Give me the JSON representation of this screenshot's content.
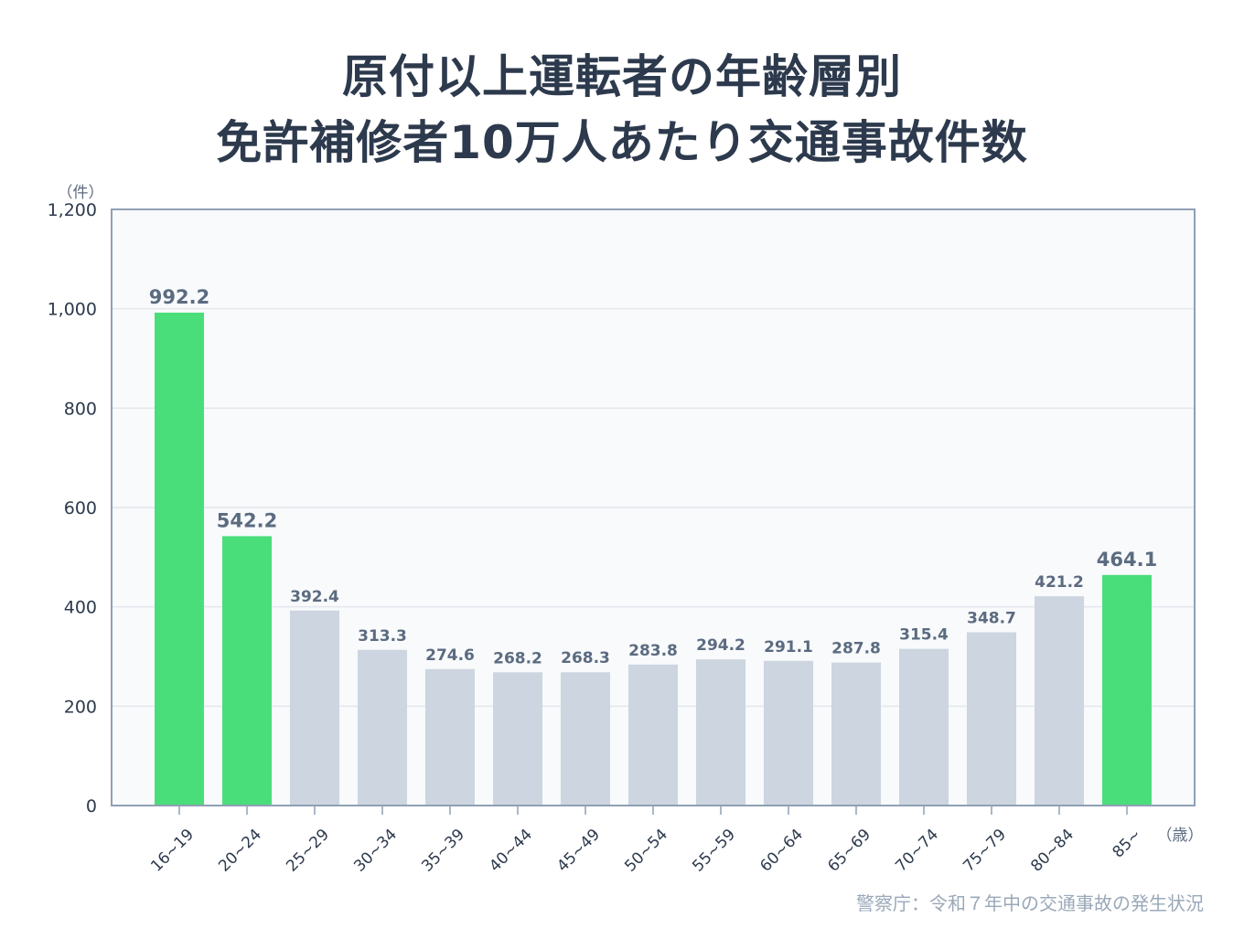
{
  "title": {
    "line1": "原付以上運転者の年齢層別",
    "line2": "免許補修者10万人あたり交通事故件数"
  },
  "source": "警察庁：令和７年中の交通事故の発生状況",
  "colors": {
    "highlight": "#4ade7b",
    "normal": "#ccd5e0",
    "plot_bg": "#f8fafb",
    "axis": "#8fa0b4",
    "grid": "#e3e8ee",
    "text_dark": "#2d3a4d",
    "label": "#5b6b80"
  },
  "chart_data": {
    "type": "bar",
    "ylabel": "（件）",
    "xlabel": "（歳）",
    "ylim": [
      0,
      1200
    ],
    "yticks": [
      0,
      200,
      400,
      600,
      800,
      1000,
      1200
    ],
    "ytick_labels": [
      "0",
      "200",
      "400",
      "600",
      "800",
      "1,000",
      "1,200"
    ],
    "grid": true,
    "categories": [
      "16~19",
      "20~24",
      "25~29",
      "30~34",
      "35~39",
      "40~44",
      "45~49",
      "50~54",
      "55~59",
      "60~64",
      "65~69",
      "70~74",
      "75~79",
      "80~84",
      "85~"
    ],
    "values": [
      992.2,
      542.2,
      392.4,
      313.3,
      274.6,
      268.2,
      268.3,
      283.8,
      294.2,
      291.1,
      287.8,
      315.4,
      348.7,
      421.2,
      464.1
    ],
    "value_labels": [
      "992.2",
      "542.2",
      "392.4",
      "313.3",
      "274.6",
      "268.2",
      "268.3",
      "283.8",
      "294.2",
      "291.1",
      "287.8",
      "315.4",
      "348.7",
      "421.2",
      "464.1"
    ],
    "highlighted": [
      true,
      true,
      false,
      false,
      false,
      false,
      false,
      false,
      false,
      false,
      false,
      false,
      false,
      false,
      true
    ]
  }
}
